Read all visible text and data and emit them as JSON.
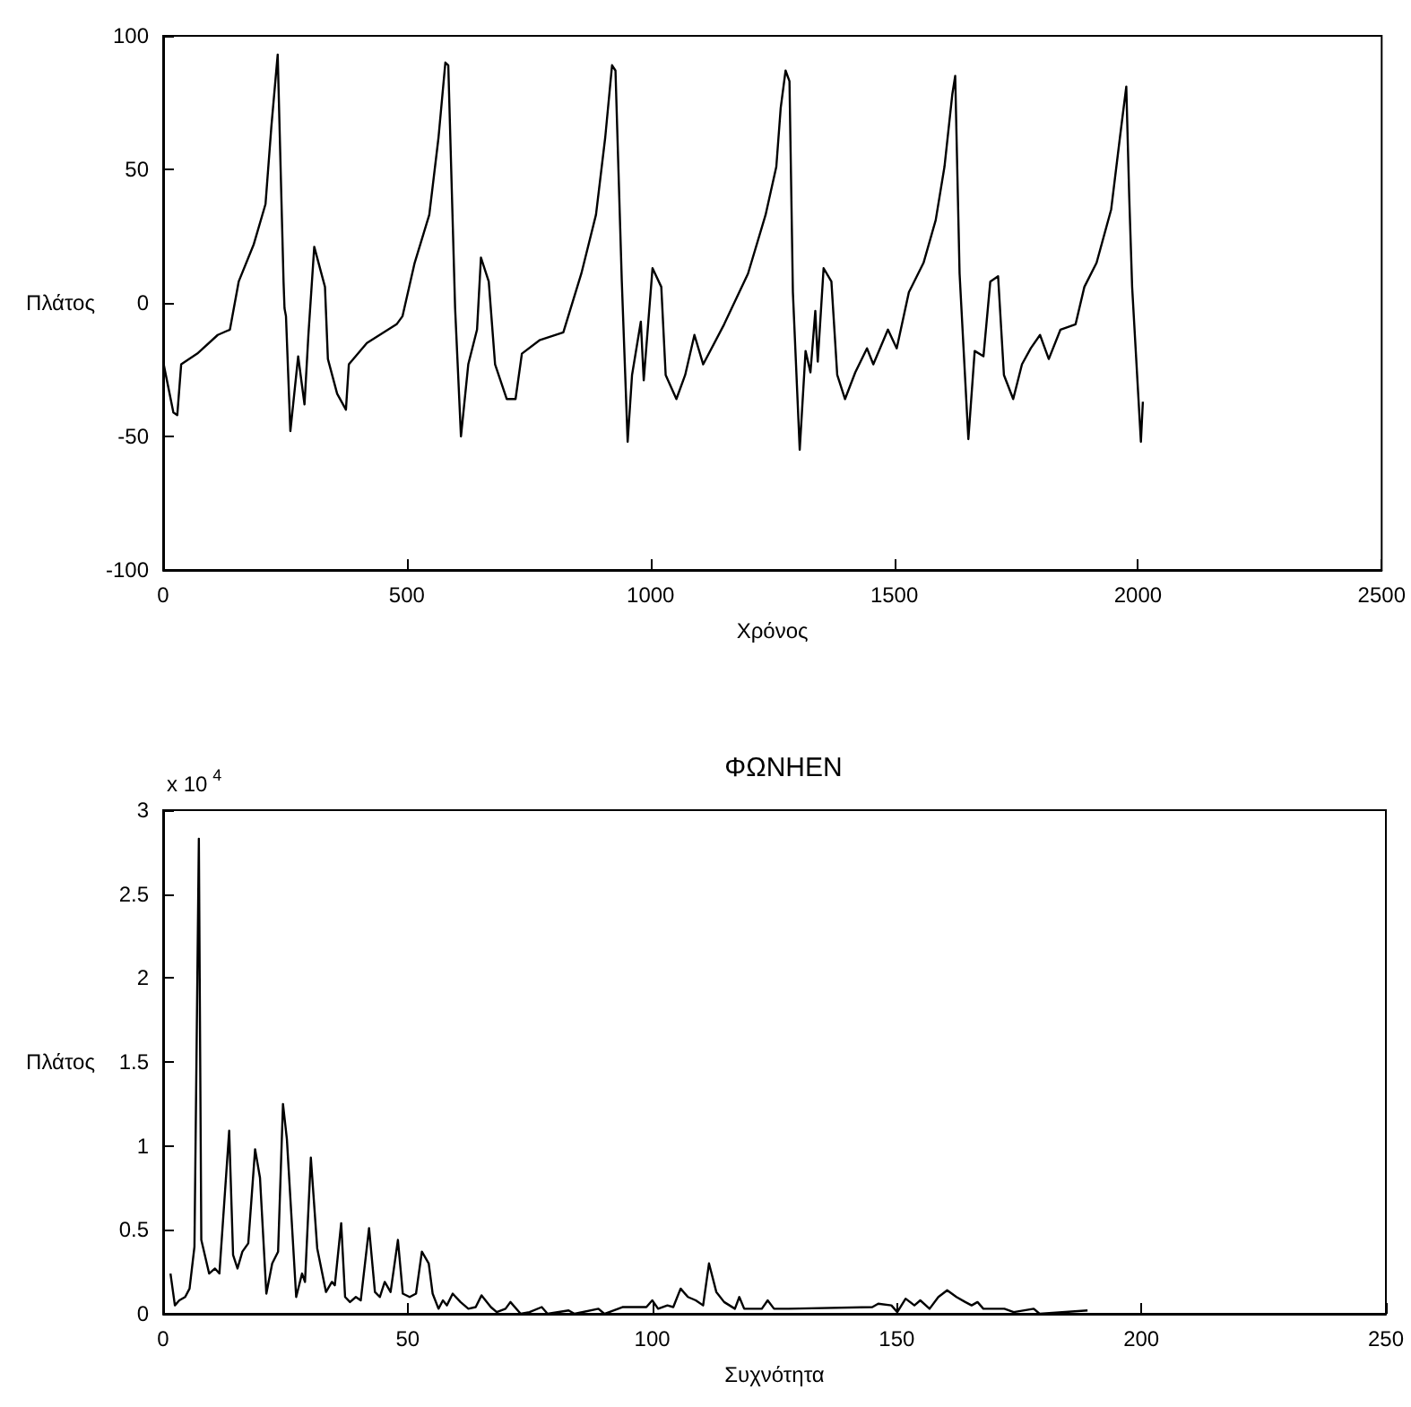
{
  "chart_data": [
    {
      "type": "line",
      "xlabel": "Χρόνος",
      "ylabel": "Πλάτος",
      "xlim": [
        0,
        2500
      ],
      "ylim": [
        -100,
        100
      ],
      "xticks": [
        0,
        500,
        1000,
        1500,
        2000,
        2500
      ],
      "yticks": [
        -100,
        -50,
        0,
        50,
        100
      ],
      "grid": false,
      "marker": "none",
      "line_style": "solid",
      "series": [
        {
          "color": "#000000",
          "x": [
            0,
            21,
            29,
            37,
            70,
            112,
            137,
            155,
            186,
            210,
            222,
            235,
            236,
            247,
            249,
            252,
            261,
            277,
            290,
            298,
            310,
            332,
            338,
            357,
            375,
            381,
            418,
            479,
            491,
            516,
            546,
            565,
            579,
            585,
            599,
            611,
            626,
            644,
            652,
            668,
            681,
            705,
            723,
            736,
            772,
            821,
            858,
            888,
            907,
            921,
            928,
            941,
            953,
            962,
            980,
            986,
            1004,
            1022,
            1031,
            1053,
            1071,
            1090,
            1108,
            1151,
            1200,
            1236,
            1258,
            1267,
            1277,
            1285,
            1292,
            1306,
            1318,
            1328,
            1338,
            1343,
            1355,
            1371,
            1383,
            1399,
            1420,
            1444,
            1457,
            1487,
            1505,
            1530,
            1560,
            1585,
            1603,
            1619,
            1625,
            1634,
            1652,
            1665,
            1683,
            1697,
            1713,
            1725,
            1744,
            1762,
            1780,
            1799,
            1817,
            1841,
            1872,
            1890,
            1915,
            1945,
            1963,
            1976,
            1982,
            1988,
            2006,
            2010
          ],
          "values": [
            -22,
            -41,
            -42,
            -23,
            -19,
            -12,
            -10,
            8,
            22,
            37,
            66,
            93,
            93,
            8,
            -2,
            -5,
            -48,
            -20,
            -38,
            -12,
            21,
            6,
            -21,
            -34,
            -40,
            -23,
            -15,
            -8,
            -5,
            15,
            33,
            62,
            90,
            89,
            -2,
            -50,
            -23,
            -10,
            17,
            8,
            -23,
            -36,
            -36,
            -19,
            -14,
            -11,
            11,
            33,
            62,
            89,
            87,
            8,
            -52,
            -27,
            -7,
            -29,
            13,
            6,
            -27,
            -36,
            -27,
            -12,
            -23,
            -8,
            11,
            33,
            51,
            73,
            87,
            83,
            4,
            -55,
            -18,
            -26,
            -3,
            -22,
            13,
            8,
            -27,
            -36,
            -26,
            -17,
            -23,
            -10,
            -17,
            4,
            15,
            31,
            51,
            78,
            85,
            11,
            -51,
            -18,
            -20,
            8,
            10,
            -27,
            -36,
            -23,
            -17,
            -12,
            -21,
            -10,
            -8,
            6,
            15,
            35,
            62,
            81,
            40,
            6,
            -52,
            -37
          ]
        }
      ]
    },
    {
      "type": "line",
      "title": "ΦΩΝΗΕΝ",
      "xlabel": "Συχνότητα",
      "ylabel": "Πλάτος",
      "annotations": [
        "x 10$^{4}$"
      ],
      "xlim": [
        0,
        250
      ],
      "ylim": [
        0,
        3
      ],
      "xticks": [
        0,
        50,
        100,
        150,
        200,
        250
      ],
      "yticks": [
        0,
        0.5,
        1,
        1.5,
        2,
        2.5,
        3
      ],
      "grid": false,
      "marker": "none",
      "line_style": "solid",
      "series": [
        {
          "color": "#000000",
          "x": [
            1.5,
            2.4,
            3.3,
            4.5,
            5.4,
            6.4,
            7.3,
            7.8,
            9.4,
            10.6,
            11.5,
            13.5,
            14.3,
            15.2,
            16.2,
            17.4,
            18.8,
            19.8,
            21.1,
            22.3,
            23.5,
            24.5,
            25.3,
            27.2,
            28.4,
            29.0,
            30.2,
            31.5,
            33.3,
            34.5,
            35.1,
            36.4,
            37.2,
            38.2,
            39.4,
            40.4,
            42.1,
            43.3,
            44.3,
            45.3,
            46.5,
            48.0,
            49.0,
            50.4,
            51.7,
            52.9,
            54.3,
            55.1,
            56.3,
            57.2,
            58.0,
            59.2,
            60.8,
            62.4,
            63.9,
            65.1,
            67.0,
            68.2,
            70.0,
            71.0,
            73.1,
            74.9,
            77.4,
            78.6,
            82.9,
            84.1,
            89.0,
            90.2,
            93.9,
            98.8,
            100.0,
            101.2,
            103.1,
            104.3,
            105.8,
            107.3,
            108.9,
            110.4,
            111.6,
            113.1,
            114.7,
            116.9,
            117.8,
            118.8,
            122.4,
            123.6,
            124.9,
            126.7,
            127.9,
            145.0,
            146.2,
            148.9,
            150.1,
            151.8,
            153.6,
            154.8,
            156.7,
            158.5,
            160.3,
            162.2,
            164.0,
            165.3,
            166.5,
            167.7,
            172.0,
            173.9,
            178.0,
            179.2,
            189.0
          ],
          "values": [
            0.24,
            0.05,
            0.08,
            0.1,
            0.15,
            0.4,
            2.83,
            0.44,
            0.24,
            0.27,
            0.24,
            1.09,
            0.35,
            0.27,
            0.37,
            0.42,
            0.98,
            0.81,
            0.12,
            0.3,
            0.37,
            1.25,
            1.04,
            0.1,
            0.24,
            0.19,
            0.93,
            0.39,
            0.13,
            0.19,
            0.17,
            0.54,
            0.1,
            0.07,
            0.1,
            0.08,
            0.51,
            0.13,
            0.1,
            0.19,
            0.13,
            0.44,
            0.12,
            0.1,
            0.12,
            0.37,
            0.3,
            0.12,
            0.03,
            0.08,
            0.05,
            0.12,
            0.07,
            0.03,
            0.04,
            0.11,
            0.04,
            0.01,
            0.03,
            0.07,
            0,
            0.01,
            0.04,
            0,
            0.02,
            0,
            0.03,
            0,
            0.04,
            0.04,
            0.08,
            0.03,
            0.05,
            0.04,
            0.15,
            0.1,
            0.08,
            0.05,
            0.3,
            0.13,
            0.07,
            0.03,
            0.1,
            0.03,
            0.03,
            0.08,
            0.03,
            0.03,
            0.03,
            0.04,
            0.06,
            0.05,
            0.01,
            0.09,
            0.05,
            0.08,
            0.03,
            0.1,
            0.14,
            0.1,
            0.07,
            0.05,
            0.07,
            0.03,
            0.03,
            0.01,
            0.03,
            0,
            0.02
          ]
        }
      ]
    }
  ]
}
